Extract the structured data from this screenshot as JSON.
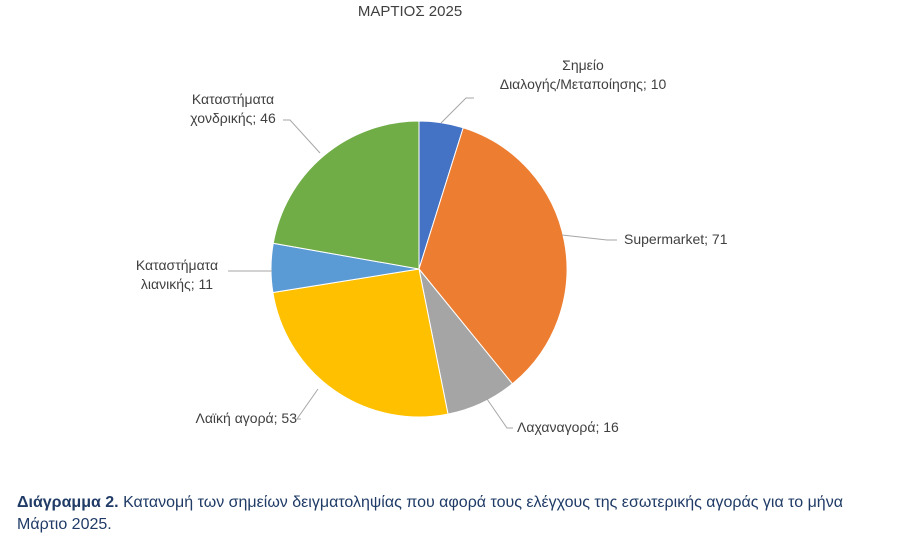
{
  "chart_data": {
    "type": "pie",
    "title": "ΜΑΡΤΙΟΣ 2025",
    "slices": [
      {
        "label_lines": [
          "Σημείο",
          "Διαλογής/Μεταποίησης; 10"
        ],
        "name": "Σημείο Διαλογής/Μεταποίησης",
        "value": 10,
        "color": "#4472C4"
      },
      {
        "label_lines": [
          "Supermarket; 71"
        ],
        "name": "Supermarket",
        "value": 71,
        "color": "#ED7D31"
      },
      {
        "label_lines": [
          "Λαχαναγορά; 16"
        ],
        "name": "Λαχαναγορά",
        "value": 16,
        "color": "#A5A5A5"
      },
      {
        "label_lines": [
          "Λαϊκή αγορά; 53"
        ],
        "name": "Λαϊκή αγορά",
        "value": 53,
        "color": "#FFC000"
      },
      {
        "label_lines": [
          "Καταστήματα",
          "λιανικής; 11"
        ],
        "name": "Καταστήματα λιανικής",
        "value": 11,
        "color": "#5B9BD5"
      },
      {
        "label_lines": [
          "Καταστήματα",
          "χονδρικής; 46"
        ],
        "name": "Καταστήματα χονδρικής",
        "value": 46,
        "color": "#70AD47"
      }
    ]
  },
  "caption": {
    "prefix": "Διάγραμμα 2.",
    "text": " Κατανομή των σημείων δειγματοληψίας που αφορά τους ελέγχους της εσωτερικής αγοράς για το μήνα Μάρτιο 2025."
  }
}
